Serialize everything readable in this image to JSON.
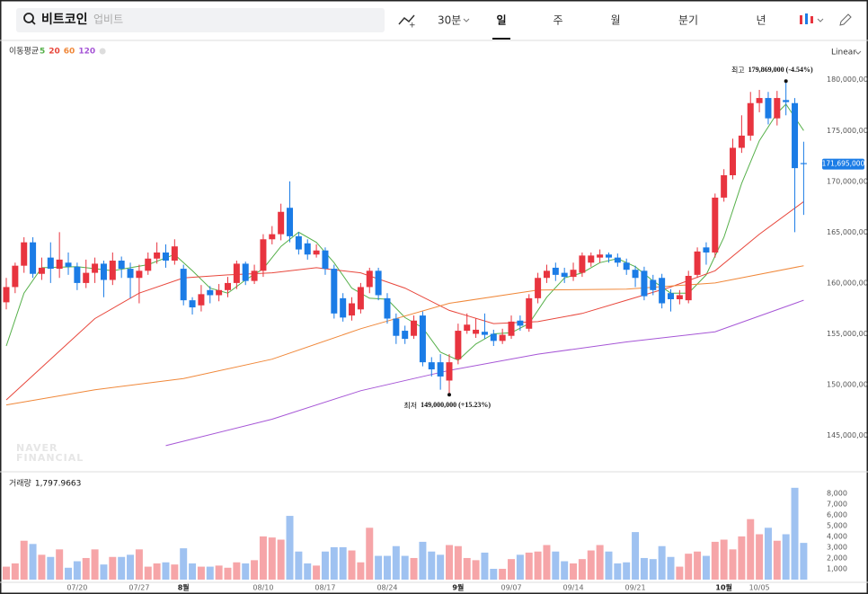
{
  "toolbar": {
    "search": "비트코인",
    "placeholder": "업비트",
    "interval": "30분",
    "periods": [
      "일",
      "주",
      "월",
      "분기",
      "년"
    ],
    "active_period": 0
  },
  "chart_data": [
    {
      "type": "candlestick",
      "legend_title": "이동평균",
      "scale": "Linear",
      "grid": false,
      "categories": [
        null,
        null,
        null,
        null,
        null,
        null,
        null,
        null,
        "07/20",
        null,
        null,
        null,
        null,
        null,
        null,
        "07/27",
        null,
        null,
        null,
        null,
        "8월",
        null,
        null,
        null,
        null,
        null,
        null,
        null,
        null,
        "08/10",
        null,
        null,
        null,
        null,
        null,
        null,
        "08/17",
        null,
        null,
        null,
        null,
        null,
        null,
        "08/24",
        null,
        null,
        null,
        null,
        null,
        null,
        null,
        "9월",
        null,
        null,
        null,
        null,
        null,
        "09/07",
        null,
        null,
        null,
        null,
        null,
        null,
        "09/14",
        null,
        null,
        null,
        null,
        null,
        null,
        "09/21",
        null,
        null,
        null,
        null,
        null,
        null,
        null,
        null,
        null,
        "10월",
        null,
        null,
        null,
        "10/05",
        null,
        null,
        null,
        null,
        null
      ],
      "open": [
        158100000,
        159600000,
        161700000,
        164000000,
        160900000,
        162500000,
        161400000,
        162000000,
        161600000,
        160000000,
        161000000,
        161900000,
        160300000,
        162200000,
        161400000,
        160500000,
        161200000,
        162400000,
        163000000,
        162200000,
        161400000,
        158300000,
        157800000,
        159300000,
        158800000,
        159300000,
        160000000,
        161900000,
        160200000,
        161200000,
        164300000,
        164800000,
        167400000,
        164600000,
        163900000,
        162800000,
        163200000,
        161400000,
        158500000,
        156800000,
        157400000,
        159600000,
        161200000,
        158500000,
        156500000,
        155300000,
        154800000,
        156800000,
        152200000,
        152200000,
        150400000,
        152500000,
        155300000,
        155000000,
        155200000,
        155000000,
        154300000,
        154800000,
        156300000,
        155500000,
        158500000,
        160500000,
        161500000,
        161000000,
        160600000,
        161000000,
        162000000,
        162500000,
        162800000,
        162500000,
        162000000,
        161300000,
        161200000,
        160300000,
        160500000,
        159000000,
        158400000,
        158300000,
        160800000,
        163500000,
        163000000,
        168400000,
        170600000,
        173300000,
        174500000,
        177700000,
        178200000,
        176200000,
        178000000,
        177700000,
        171800000
      ],
      "high": [
        160500000,
        162000000,
        164500000,
        164500000,
        162500000,
        164000000,
        165000000,
        163000000,
        162000000,
        162300000,
        162500000,
        162200000,
        163000000,
        162600000,
        162000000,
        161800000,
        163000000,
        164000000,
        163800000,
        164300000,
        161800000,
        158600000,
        159800000,
        159700000,
        159900000,
        160600000,
        162200000,
        162100000,
        161800000,
        164800000,
        165600000,
        167800000,
        170000000,
        165000000,
        164300000,
        163800000,
        163500000,
        161800000,
        159000000,
        158600000,
        160000000,
        161500000,
        161500000,
        159000000,
        157000000,
        155800000,
        156800000,
        157200000,
        152700000,
        153000000,
        153000000,
        156000000,
        157000000,
        156500000,
        157000000,
        155400000,
        155500000,
        156800000,
        156800000,
        158900000,
        161000000,
        161800000,
        162000000,
        161500000,
        162000000,
        163000000,
        163000000,
        163300000,
        163000000,
        162900000,
        162400000,
        161700000,
        161600000,
        160800000,
        160900000,
        159400000,
        159300000,
        161200000,
        163500000,
        164000000,
        168800000,
        171200000,
        174200000,
        176500000,
        178800000,
        179000000,
        178800000,
        178900000,
        179869000,
        178200000,
        173900000
      ],
      "low": [
        157400000,
        159000000,
        161000000,
        160500000,
        160300000,
        160000000,
        160500000,
        160800000,
        159300000,
        159500000,
        160000000,
        158600000,
        159800000,
        160500000,
        158500000,
        158000000,
        160800000,
        161900000,
        161500000,
        161800000,
        157800000,
        156900000,
        157200000,
        158000000,
        158200000,
        158600000,
        159400000,
        159800000,
        159900000,
        160600000,
        163800000,
        164200000,
        164000000,
        162800000,
        162300000,
        162500000,
        160800000,
        156500000,
        156200000,
        156300000,
        157000000,
        159000000,
        158300000,
        156000000,
        154000000,
        154000000,
        154500000,
        151800000,
        150800000,
        149500000,
        149000000,
        152000000,
        155000000,
        154600000,
        154500000,
        153800000,
        154000000,
        154500000,
        155300000,
        155200000,
        158000000,
        160000000,
        160200000,
        160000000,
        160200000,
        160600000,
        161600000,
        162000000,
        162000000,
        161600000,
        160800000,
        159600000,
        158300000,
        158800000,
        157500000,
        157200000,
        157900000,
        158000000,
        160500000,
        161800000,
        162500000,
        168000000,
        170200000,
        172800000,
        174000000,
        176800000,
        175600000,
        175500000,
        176500000,
        165000000,
        166700000
      ],
      "close": [
        159600000,
        161700000,
        164000000,
        160900000,
        161500000,
        161400000,
        162300000,
        161600000,
        160000000,
        161000000,
        161900000,
        160300000,
        162200000,
        161400000,
        160500000,
        161200000,
        162400000,
        163000000,
        162200000,
        163600000,
        158300000,
        157600000,
        158900000,
        158800000,
        159300000,
        160000000,
        161900000,
        160200000,
        161200000,
        164300000,
        164800000,
        167000000,
        164600000,
        163300000,
        162800000,
        163200000,
        161400000,
        157000000,
        156600000,
        158000000,
        159600000,
        161200000,
        158800000,
        156500000,
        154800000,
        154500000,
        156300000,
        152200000,
        151500000,
        150800000,
        152200000,
        155300000,
        155900000,
        155400000,
        154900000,
        154300000,
        154900000,
        156200000,
        155800000,
        158500000,
        160500000,
        161200000,
        160800000,
        160600000,
        161300000,
        162700000,
        162700000,
        162800000,
        162500000,
        162000000,
        161300000,
        160500000,
        158700000,
        159300000,
        158000000,
        158400000,
        158800000,
        160700000,
        163100000,
        163000000,
        168400000,
        170600000,
        173300000,
        174500000,
        177700000,
        178200000,
        176200000,
        178200000,
        177800000,
        171300000,
        171695000
      ],
      "up_color": "#e8343f",
      "down_color": "#1b7ce6",
      "ylim": [
        141600000,
        183600000
      ],
      "yticks": [
        {
          "value": 145000000,
          "label": "145,000,000"
        },
        {
          "value": 150000000,
          "label": "150,000,000"
        },
        {
          "value": 155000000,
          "label": "155,000,000"
        },
        {
          "value": 160000000,
          "label": "160,000,000"
        },
        {
          "value": 165000000,
          "label": "165,000,000"
        },
        {
          "value": 170000000,
          "label": "170,000,000"
        },
        {
          "value": 175000000,
          "label": "175,000,000"
        },
        {
          "value": 180000000,
          "label": "180,000,000"
        }
      ],
      "lines": [
        {
          "name": "5",
          "color": "#56b04a",
          "x": [
            0,
            2,
            4,
            8,
            12,
            16,
            19,
            21,
            23,
            25,
            27,
            29,
            31,
            33,
            35,
            37,
            39,
            41,
            43,
            45,
            47,
            49,
            51,
            53,
            55,
            57,
            59,
            61,
            63,
            65,
            67,
            69,
            71,
            73,
            75,
            77,
            79,
            81,
            83,
            85,
            87,
            88,
            90
          ],
          "values": [
            153800000,
            159000000,
            161500000,
            161600000,
            161200000,
            161800000,
            162800000,
            161200000,
            159500000,
            159000000,
            160300000,
            161400000,
            163600000,
            165000000,
            164000000,
            162000000,
            159500000,
            158500000,
            158400000,
            156600000,
            155600000,
            153200000,
            152400000,
            154000000,
            155000000,
            155100000,
            156000000,
            158600000,
            160500000,
            161000000,
            162000000,
            162400000,
            161600000,
            160200000,
            159000000,
            159000000,
            160800000,
            164500000,
            169800000,
            174000000,
            176700000,
            177600000,
            175000000
          ]
        },
        {
          "name": "20",
          "color": "#e8473c",
          "x": [
            0,
            5,
            10,
            15,
            20,
            25,
            30,
            35,
            40,
            45,
            50,
            55,
            60,
            65,
            70,
            75,
            80,
            85,
            90
          ],
          "values": [
            148500000,
            152500000,
            156500000,
            159000000,
            160500000,
            160800000,
            161000000,
            161500000,
            161000000,
            159500000,
            157300000,
            156000000,
            156200000,
            157000000,
            158300000,
            159600000,
            161200000,
            164800000,
            168000000
          ]
        },
        {
          "name": "60",
          "color": "#f0883a",
          "x": [
            0,
            10,
            20,
            30,
            40,
            50,
            60,
            70,
            80,
            90
          ],
          "values": [
            148000000,
            149500000,
            150600000,
            152500000,
            155500000,
            158000000,
            159300000,
            159400000,
            160000000,
            161700000
          ]
        },
        {
          "name": "120",
          "color": "#a656d6",
          "x": [
            18,
            30,
            40,
            50,
            60,
            70,
            80,
            90
          ],
          "values": [
            144000000,
            146600000,
            149400000,
            151400000,
            153000000,
            154200000,
            155200000,
            158300000
          ]
        }
      ],
      "current": {
        "value": 171695000,
        "label": "171,695,000"
      },
      "annotations": [
        {
          "index": 88,
          "value": 179869000,
          "label": "최고",
          "text": "179,869,000 (-4.54%)"
        },
        {
          "index": 50,
          "value": 149000000,
          "label": "최저",
          "text": "149,000,000 (+15.23%)"
        }
      ],
      "watermark": [
        "NAVER",
        "FINANCIAL"
      ]
    },
    {
      "type": "bar",
      "title": "거래량",
      "subtitle": "1,797.9663",
      "grid": false,
      "values": [
        1200,
        1500,
        3600,
        3300,
        2300,
        2100,
        2800,
        1100,
        1700,
        2000,
        2800,
        1400,
        2100,
        2100,
        2300,
        2800,
        1200,
        1500,
        1600,
        1400,
        2900,
        1500,
        1200,
        1200,
        1300,
        1100,
        1600,
        1500,
        1800,
        4000,
        3900,
        3700,
        5900,
        2600,
        1500,
        1300,
        2600,
        3000,
        3000,
        2700,
        1600,
        4800,
        2200,
        2200,
        3100,
        2200,
        2000,
        3500,
        2600,
        2300,
        3200,
        3100,
        2000,
        1800,
        2500,
        1000,
        1000,
        1900,
        2300,
        2500,
        2600,
        3200,
        2600,
        1700,
        1500,
        1900,
        2700,
        3200,
        2600,
        1500,
        1600,
        4400,
        2000,
        1900,
        3100,
        2100,
        1200,
        2400,
        2600,
        2200,
        3500,
        3700,
        2800,
        4000,
        5600,
        4200,
        4800,
        3600,
        4200,
        8500,
        3400
      ],
      "up_color": "#f6a5a8",
      "down_color": "#9fc2f1",
      "ylim": [
        0,
        8900
      ],
      "yticks": [
        {
          "value": 1000,
          "label": "1,000"
        },
        {
          "value": 2000,
          "label": "2,000"
        },
        {
          "value": 3000,
          "label": "3,000"
        },
        {
          "value": 4000,
          "label": "4,000"
        },
        {
          "value": 5000,
          "label": "5,000"
        },
        {
          "value": 6000,
          "label": "6,000"
        },
        {
          "value": 7000,
          "label": "7,000"
        },
        {
          "value": 8000,
          "label": "8,000"
        }
      ]
    }
  ]
}
